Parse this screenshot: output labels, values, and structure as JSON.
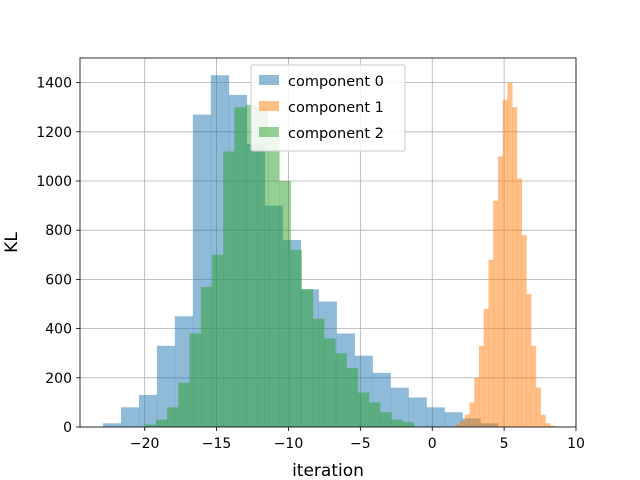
{
  "chart_data": {
    "type": "histogram",
    "xlabel": "iteration",
    "ylabel": "KL",
    "xlim": [
      -24.5,
      10
    ],
    "ylim": [
      0,
      1500
    ],
    "xticks": [
      -20,
      -15,
      -10,
      -5,
      0,
      5,
      10
    ],
    "xtick_labels": [
      "−20",
      "−15",
      "−10",
      "−5",
      "0",
      "5",
      "10"
    ],
    "yticks": [
      0,
      200,
      400,
      600,
      800,
      1000,
      1200,
      1400
    ],
    "ytick_labels": [
      "0",
      "200",
      "400",
      "600",
      "800",
      "1000",
      "1200",
      "1400"
    ],
    "grid": true,
    "legend": "upper-center",
    "series": [
      {
        "name": "component 0",
        "color": "#1f77b4",
        "alpha": 0.5,
        "bin_start": -22.9,
        "bin_width": 1.25,
        "counts": [
          15,
          80,
          130,
          330,
          450,
          1270,
          1430,
          1350,
          1150,
          900,
          760,
          560,
          510,
          380,
          290,
          220,
          160,
          120,
          80,
          60,
          35,
          15
        ]
      },
      {
        "name": "component 1",
        "color": "#ff7f0e",
        "alpha": 0.5,
        "bin_start": 1.6,
        "bin_width": 0.33,
        "counts": [
          10,
          25,
          50,
          100,
          200,
          330,
          480,
          680,
          920,
          1100,
          1330,
          1400,
          1300,
          1010,
          780,
          540,
          330,
          160,
          50,
          15,
          5
        ]
      },
      {
        "name": "component 2",
        "color": "#2ca02c",
        "alpha": 0.5,
        "bin_start": -20.0,
        "bin_width": 0.78,
        "counts": [
          10,
          30,
          80,
          180,
          380,
          570,
          700,
          1120,
          1300,
          1310,
          1300,
          1180,
          1000,
          720,
          560,
          440,
          360,
          300,
          240,
          140,
          100,
          60,
          30,
          20
        ]
      }
    ]
  }
}
